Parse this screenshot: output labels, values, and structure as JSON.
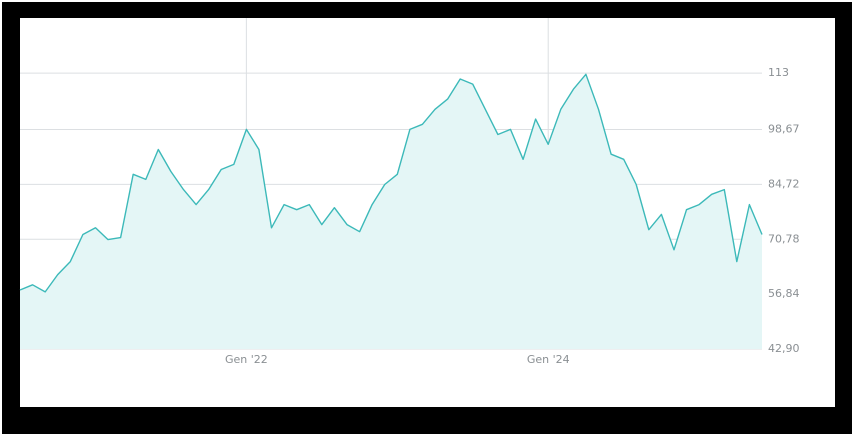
{
  "chart_data": {
    "type": "area",
    "categories": [
      null,
      null,
      null,
      null,
      null,
      null,
      null,
      null,
      null,
      null,
      null,
      null,
      null,
      null,
      null,
      null,
      null,
      null,
      "Gen '22",
      null,
      null,
      null,
      null,
      null,
      null,
      null,
      null,
      null,
      null,
      null,
      null,
      null,
      null,
      null,
      null,
      null,
      null,
      null,
      null,
      null,
      null,
      null,
      "Gen '24",
      null,
      null,
      null,
      null,
      null,
      null,
      null,
      null,
      null,
      null,
      null,
      null,
      null,
      null,
      null,
      null,
      null
    ],
    "values": [
      57.9,
      59.2,
      57.4,
      61.8,
      65.1,
      72,
      73.7,
      70.7,
      71.2,
      87.3,
      86,
      93.6,
      88,
      83.4,
      79.6,
      83.4,
      88.5,
      89.8,
      98.7,
      93.6,
      73.7,
      79.6,
      78.3,
      79.6,
      74.5,
      78.8,
      74.5,
      72.7,
      79.6,
      84.7,
      87.3,
      98.7,
      100,
      103.8,
      106.4,
      111.5,
      110.2,
      103.8,
      97.4,
      98.7,
      91.1,
      101.3,
      94.9,
      103.8,
      108.9,
      112.7,
      103.8,
      92.4,
      91.1,
      84.7,
      73.2,
      77.1,
      68.1,
      78.3,
      79.6,
      82.2,
      83.4,
      65.1,
      79.6,
      72
    ],
    "color": "#3cb9b9",
    "fill_color": "#e4f6f6",
    "ylim": [
      42.9,
      127
    ],
    "yticks": [
      {
        "value": 42.9,
        "label": "42,90"
      },
      {
        "value": 56.84,
        "label": "56,84"
      },
      {
        "value": 70.78,
        "label": "70,78"
      },
      {
        "value": 84.72,
        "label": "84,72"
      },
      {
        "value": 98.67,
        "label": "98,67"
      },
      113
    ],
    "grid": true
  }
}
